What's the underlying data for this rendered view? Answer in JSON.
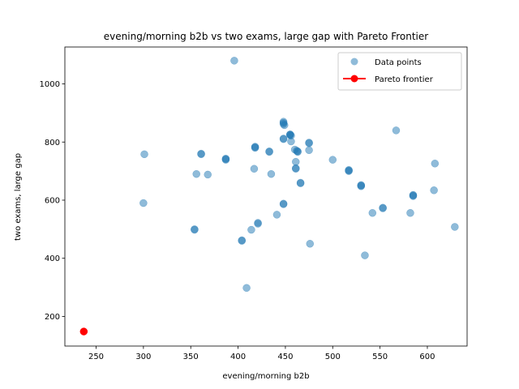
{
  "chart_data": {
    "type": "scatter",
    "title": "evening/morning b2b vs two exams, large gap with Pareto Frontier",
    "xlabel": "evening/morning b2b",
    "ylabel": "two exams, large gap",
    "xlim": [
      217,
      642
    ],
    "ylim": [
      98,
      1127
    ],
    "xticks": [
      250,
      300,
      350,
      400,
      450,
      500,
      550,
      600
    ],
    "yticks": [
      200,
      400,
      600,
      800,
      1000
    ],
    "grid": false,
    "legend_position": "top-right",
    "series": [
      {
        "name": "Data points",
        "color": "#1f77b4",
        "alpha": 0.5,
        "marker": "circle",
        "points": [
          [
            396,
            1080
          ],
          [
            448,
            870
          ],
          [
            448,
            866
          ],
          [
            448,
            862
          ],
          [
            449,
            858
          ],
          [
            455,
            826
          ],
          [
            455,
            824
          ],
          [
            456,
            822
          ],
          [
            455,
            826
          ],
          [
            567,
            840
          ],
          [
            448,
            812
          ],
          [
            448,
            810
          ],
          [
            456,
            802
          ],
          [
            475,
            798
          ],
          [
            475,
            796
          ],
          [
            418,
            784
          ],
          [
            418,
            782
          ],
          [
            418,
            780
          ],
          [
            433,
            768
          ],
          [
            433,
            766
          ],
          [
            460,
            774
          ],
          [
            462,
            770
          ],
          [
            463,
            768
          ],
          [
            463,
            766
          ],
          [
            301,
            758
          ],
          [
            361,
            760
          ],
          [
            361,
            758
          ],
          [
            475,
            772
          ],
          [
            387,
            743
          ],
          [
            387,
            741
          ],
          [
            387,
            739
          ],
          [
            500,
            739
          ],
          [
            461,
            732
          ],
          [
            608,
            726
          ],
          [
            461,
            710
          ],
          [
            461,
            708
          ],
          [
            417,
            708
          ],
          [
            517,
            704
          ],
          [
            517,
            702
          ],
          [
            517,
            700
          ],
          [
            356,
            690
          ],
          [
            368,
            688
          ],
          [
            435,
            690
          ],
          [
            466,
            660
          ],
          [
            466,
            658
          ],
          [
            530,
            652
          ],
          [
            530,
            650
          ],
          [
            530,
            648
          ],
          [
            607,
            634
          ],
          [
            585,
            618
          ],
          [
            585,
            616
          ],
          [
            585,
            614
          ],
          [
            300,
            590
          ],
          [
            448,
            588
          ],
          [
            448,
            586
          ],
          [
            553,
            574
          ],
          [
            553,
            572
          ],
          [
            542,
            556
          ],
          [
            582,
            556
          ],
          [
            441,
            550
          ],
          [
            421,
            522
          ],
          [
            421,
            519
          ],
          [
            629,
            508
          ],
          [
            414,
            498
          ],
          [
            354,
            500
          ],
          [
            354,
            498
          ],
          [
            404,
            462
          ],
          [
            404,
            460
          ],
          [
            476,
            450
          ],
          [
            534,
            410
          ],
          [
            409,
            298
          ]
        ]
      },
      {
        "name": "Pareto frontier",
        "color": "#ff0000",
        "alpha": 1,
        "marker": "circle",
        "line": true,
        "points": [
          [
            237,
            148
          ]
        ]
      }
    ]
  }
}
